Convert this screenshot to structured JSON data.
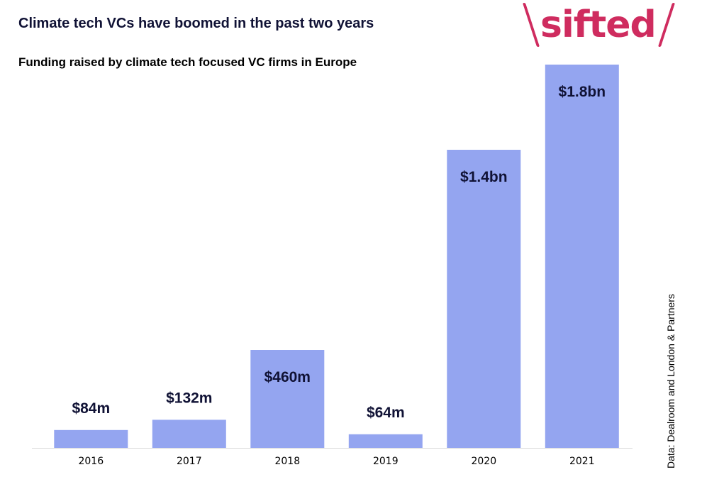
{
  "header": {
    "title": "Climate tech VCs have boomed in the past two years",
    "subtitle": "Funding raised by climate tech focused VC firms in Europe"
  },
  "logo": {
    "text": "sifted",
    "color": "#cf2c5f"
  },
  "source": "Data: Dealroom and London & Partners",
  "colors": {
    "bar": "#94a5f0",
    "label": "#101235",
    "axis": "#dcdcdc"
  },
  "chart_data": {
    "type": "bar",
    "categories": [
      "2016",
      "2017",
      "2018",
      "2019",
      "2020",
      "2021"
    ],
    "values": [
      84,
      132,
      460,
      64,
      1400,
      1800
    ],
    "unit": "$m",
    "data_labels": [
      "$84m",
      "$132m",
      "$460m",
      "$64m",
      "$1.4bn",
      "$1.8bn"
    ],
    "ylim": [
      0,
      1800
    ],
    "grid": false,
    "legend": "none"
  }
}
